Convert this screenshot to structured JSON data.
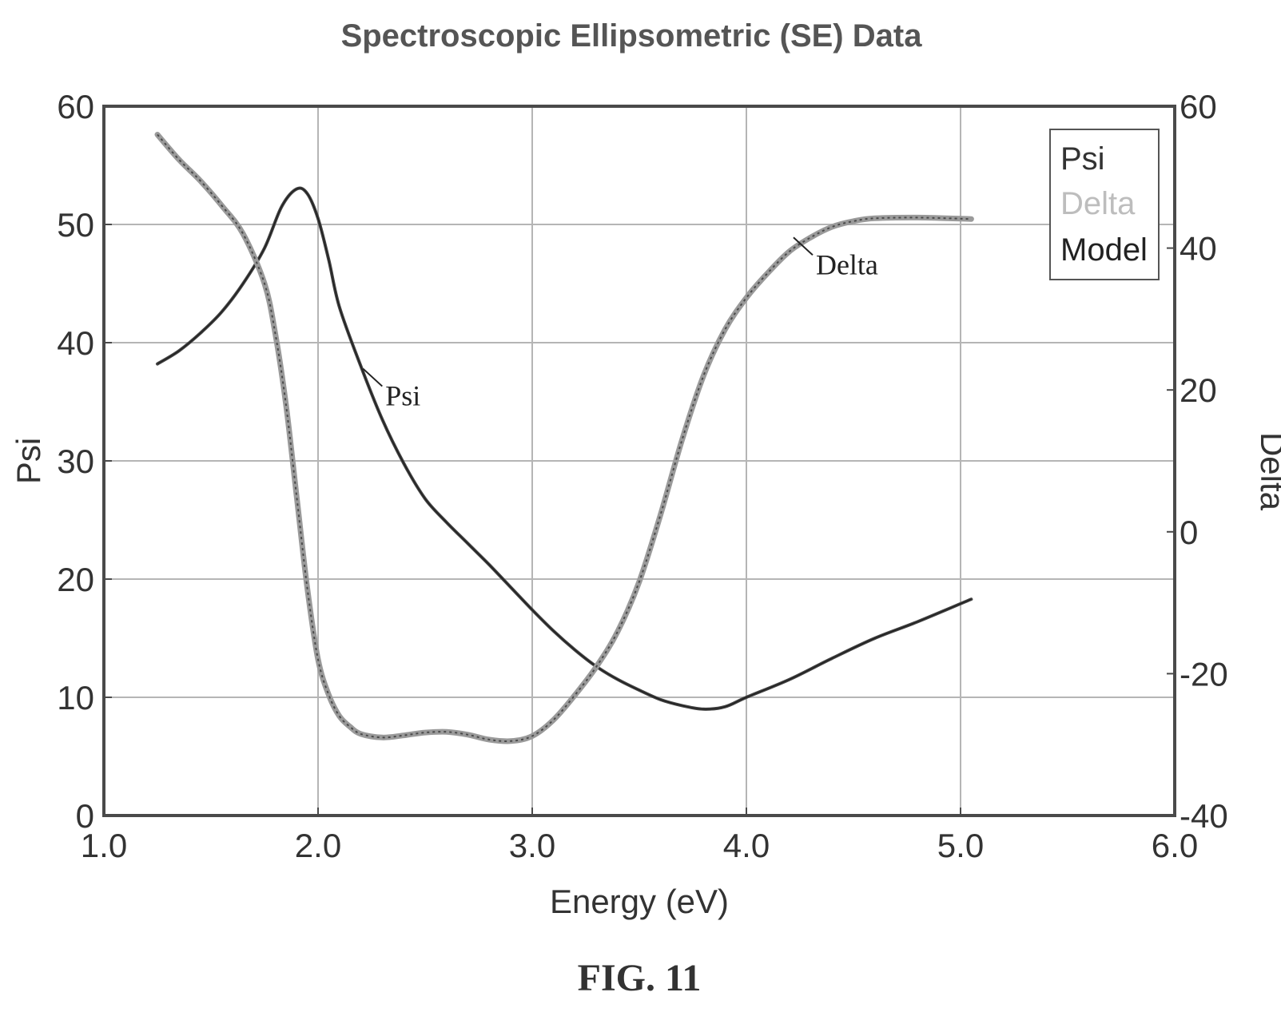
{
  "chart_data": {
    "type": "line",
    "title": "Spectroscopic Ellipsometric (SE) Data",
    "xlabel": "Energy (eV)",
    "ylabel": "Psi",
    "y2label": "Delta",
    "xlim": [
      1.0,
      6.0
    ],
    "ylim": [
      0,
      60
    ],
    "y2lim": [
      -40,
      60
    ],
    "xticks": [
      "1.0",
      "2.0",
      "3.0",
      "4.0",
      "5.0",
      "6.0"
    ],
    "yticks": [
      "0",
      "10",
      "20",
      "30",
      "40",
      "50",
      "60"
    ],
    "y2ticks": [
      "-40",
      "-20",
      "0",
      "20",
      "40",
      "60"
    ],
    "grid": true,
    "legend": {
      "placement": "top-right",
      "entries": [
        "Psi",
        "Delta",
        "Model"
      ]
    },
    "colors": {
      "psi": "#444444",
      "delta": "#9a9a9a",
      "model": "#222222"
    },
    "series": [
      {
        "name": "Psi",
        "axis": "left",
        "x": [
          1.25,
          1.35,
          1.45,
          1.55,
          1.65,
          1.75,
          1.83,
          1.9,
          1.95,
          2.0,
          2.05,
          2.1,
          2.2,
          2.3,
          2.4,
          2.5,
          2.6,
          2.7,
          2.8,
          2.9,
          3.0,
          3.1,
          3.2,
          3.3,
          3.4,
          3.5,
          3.6,
          3.7,
          3.8,
          3.9,
          4.0,
          4.2,
          4.4,
          4.6,
          4.8,
          5.05
        ],
        "y": [
          38.2,
          39.3,
          40.8,
          42.6,
          45.0,
          48.0,
          51.5,
          53.0,
          52.6,
          50.5,
          47.0,
          43.0,
          38.0,
          33.5,
          29.8,
          26.8,
          24.8,
          23.0,
          21.2,
          19.3,
          17.4,
          15.6,
          14.0,
          12.6,
          11.5,
          10.6,
          9.8,
          9.3,
          9.0,
          9.2,
          10.0,
          11.5,
          13.3,
          15.0,
          16.4,
          18.3
        ]
      },
      {
        "name": "Delta",
        "axis": "right",
        "x": [
          1.25,
          1.35,
          1.45,
          1.55,
          1.65,
          1.75,
          1.8,
          1.85,
          1.9,
          1.95,
          2.0,
          2.05,
          2.1,
          2.15,
          2.2,
          2.3,
          2.4,
          2.5,
          2.6,
          2.7,
          2.8,
          2.9,
          3.0,
          3.1,
          3.2,
          3.3,
          3.4,
          3.5,
          3.6,
          3.7,
          3.8,
          3.9,
          4.0,
          4.1,
          4.2,
          4.3,
          4.4,
          4.5,
          4.6,
          4.8,
          5.05
        ],
        "y": [
          56.0,
          52.5,
          49.5,
          46.0,
          42.0,
          35.0,
          28.0,
          18.0,
          5.0,
          -8.0,
          -18.0,
          -23.0,
          -26.0,
          -27.5,
          -28.5,
          -29.0,
          -28.7,
          -28.3,
          -28.2,
          -28.6,
          -29.3,
          -29.5,
          -28.8,
          -26.5,
          -23.0,
          -19.0,
          -14.0,
          -7.0,
          2.5,
          13.0,
          22.0,
          28.5,
          33.0,
          36.5,
          39.5,
          41.5,
          43.0,
          43.8,
          44.2,
          44.3,
          44.1
        ]
      }
    ],
    "annotations": [
      {
        "text": "Psi",
        "series": "Psi",
        "x": 2.21,
        "y": 37.8
      },
      {
        "text": "Delta",
        "series": "Delta",
        "x": 4.22,
        "y": 41.5
      }
    ],
    "caption": "FIG. 11"
  }
}
